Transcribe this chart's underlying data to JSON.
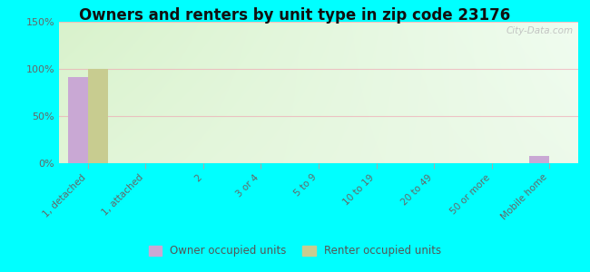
{
  "title": "Owners and renters by unit type in zip code 23176",
  "categories": [
    "1, detached",
    "1, attached",
    "2",
    "3 or 4",
    "5 to 9",
    "10 to 19",
    "20 to 49",
    "50 or more",
    "Mobile home"
  ],
  "owner_values": [
    91,
    0,
    0,
    0,
    0,
    0,
    0,
    0,
    8
  ],
  "renter_values": [
    100,
    0,
    0,
    0,
    0,
    0,
    0,
    0,
    0
  ],
  "owner_color": "#c9a8d4",
  "renter_color": "#c8cc90",
  "ylim": [
    0,
    150
  ],
  "yticks": [
    0,
    50,
    100,
    150
  ],
  "ytick_labels": [
    "0%",
    "50%",
    "100%",
    "150%"
  ],
  "bg_color_top_left": "#d8eec8",
  "bg_color_top_right": "#eef8ee",
  "bg_color_bottom": "#f0f8e8",
  "outer_bg": "#00ffff",
  "watermark": "City-Data.com",
  "legend_owner": "Owner occupied units",
  "legend_renter": "Renter occupied units",
  "bar_width": 0.35,
  "title_fontsize": 12,
  "grid_color": "#f0a0b0",
  "grid_alpha": 0.6
}
